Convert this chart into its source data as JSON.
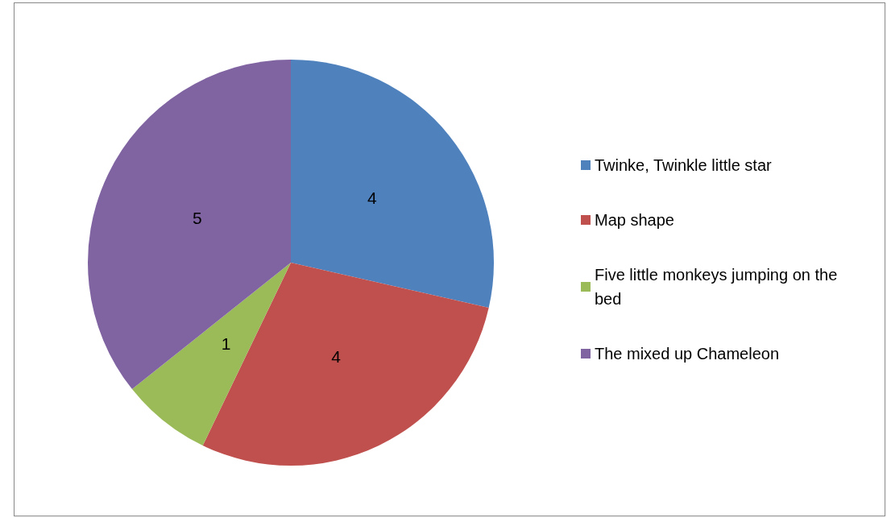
{
  "chart_data": {
    "type": "pie",
    "categories": [
      "Twinke, Twinkle little star",
      "Map shape",
      "Five little monkeys jumping on the bed",
      "The mixed up Chameleon"
    ],
    "values": [
      4,
      4,
      1,
      5
    ],
    "colors": [
      "#4f81bd",
      "#c0504d",
      "#9bbb59",
      "#8064a2"
    ],
    "data_labels": true,
    "legend": "right"
  }
}
